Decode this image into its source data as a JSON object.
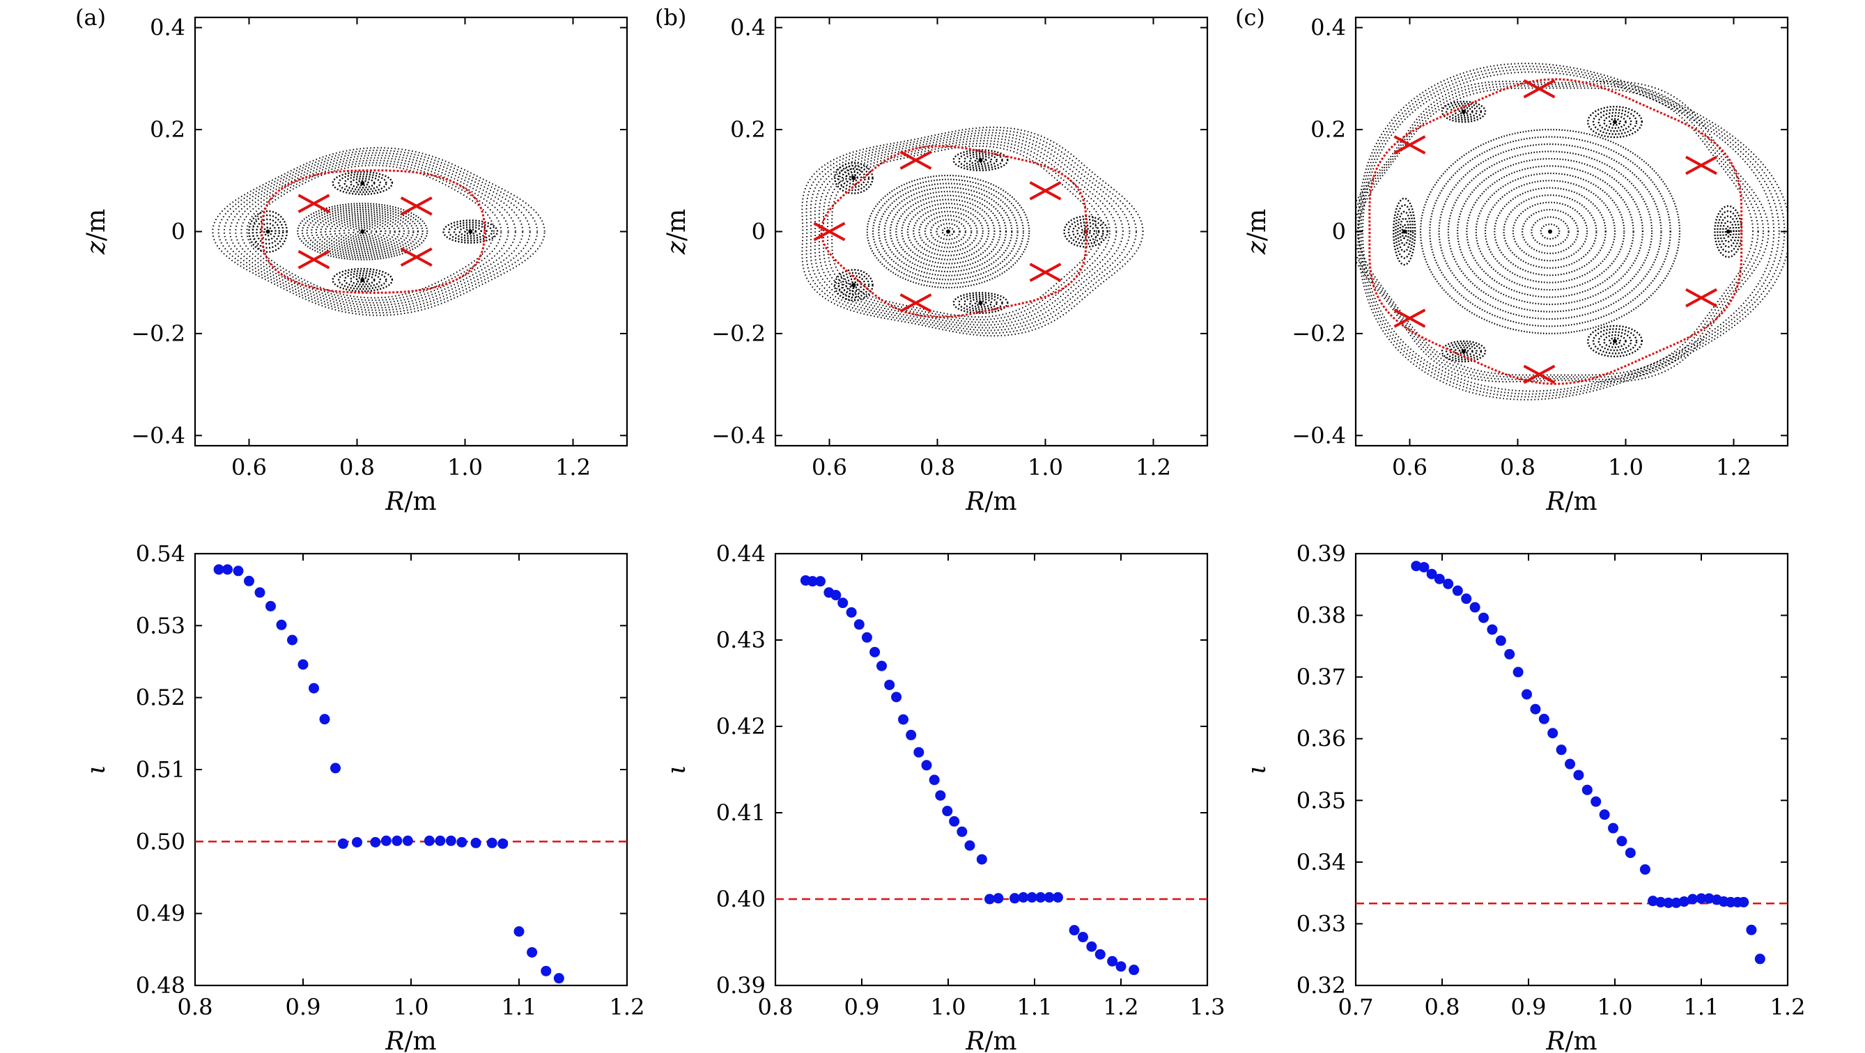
{
  "colors": {
    "poincare": "#000000",
    "separatrix": "#e01010",
    "iota_points": "#0a14e6",
    "resonance_line": "#e01010",
    "frame": "#000000"
  },
  "chart_data": [
    {
      "panel": "(a)",
      "type": "scatter",
      "xlabel_var": "R",
      "xlabel_unit": "/m",
      "ylabel_var": "z",
      "ylabel_unit": "/m",
      "xlim": [
        0.5,
        1.3
      ],
      "ylim": [
        -0.42,
        0.42
      ],
      "xticks": [
        0.6,
        0.8,
        1.0,
        1.2
      ],
      "xtick_labels": [
        "0.6",
        "0.8",
        "1.0",
        "1.2"
      ],
      "yticks": [
        -0.4,
        -0.2,
        0,
        0.2,
        0.4
      ],
      "ytick_labels": [
        "−0.4",
        "−0.2",
        "0",
        "0.2",
        "0.4"
      ],
      "poincare": {
        "axis": [
          0.81,
          0.0
        ],
        "core": {
          "a": 0.12,
          "b": 0.055
        },
        "islands": [
          {
            "center": [
              0.635,
              0.0
            ],
            "a": 0.035,
            "b": 0.04
          },
          {
            "center": [
              0.81,
              0.095
            ],
            "a": 0.055,
            "b": 0.022
          },
          {
            "center": [
              1.01,
              0.0
            ],
            "a": 0.05,
            "b": 0.022
          },
          {
            "center": [
              0.81,
              -0.095
            ],
            "a": 0.055,
            "b": 0.022
          }
        ],
        "x_points": [
          [
            0.72,
            0.055
          ],
          [
            0.91,
            0.05
          ],
          [
            0.72,
            -0.055
          ],
          [
            0.91,
            -0.05
          ]
        ],
        "separatrix": {
          "a": 0.215,
          "b": 0.125,
          "mode": 4,
          "amp": 0.04,
          "cx": 0.83
        },
        "outer": {
          "a": 0.29,
          "b": 0.155,
          "mode": 4,
          "amp": 0.06,
          "cx": 0.84
        }
      }
    },
    {
      "panel": "(b)",
      "type": "scatter",
      "xlabel_var": "R",
      "xlabel_unit": "/m",
      "ylabel_var": "z",
      "ylabel_unit": "/m",
      "xlim": [
        0.5,
        1.3
      ],
      "ylim": [
        -0.42,
        0.42
      ],
      "xticks": [
        0.6,
        0.8,
        1.0,
        1.2
      ],
      "xtick_labels": [
        "0.6",
        "0.8",
        "1.0",
        "1.2"
      ],
      "yticks": [
        -0.4,
        -0.2,
        0,
        0.2,
        0.4
      ],
      "ytick_labels": [
        "−0.4",
        "−0.2",
        "0",
        "0.2",
        "0.4"
      ],
      "poincare": {
        "axis": [
          0.82,
          0.0
        ],
        "core": {
          "a": 0.15,
          "b": 0.11
        },
        "islands": [
          {
            "center": [
              0.645,
              0.105
            ],
            "a": 0.035,
            "b": 0.03
          },
          {
            "center": [
              0.88,
              0.14
            ],
            "a": 0.05,
            "b": 0.02
          },
          {
            "center": [
              1.075,
              0.0
            ],
            "a": 0.04,
            "b": 0.03
          },
          {
            "center": [
              0.88,
              -0.14
            ],
            "a": 0.05,
            "b": 0.02
          },
          {
            "center": [
              0.645,
              -0.105
            ],
            "a": 0.035,
            "b": 0.03
          }
        ],
        "x_points": [
          [
            0.6,
            0.0
          ],
          [
            0.76,
            0.14
          ],
          [
            1.0,
            0.08
          ],
          [
            1.0,
            -0.08
          ],
          [
            0.76,
            -0.14
          ]
        ],
        "separatrix": {
          "a": 0.245,
          "b": 0.165,
          "mode": 5,
          "amp": 0.04,
          "cx": 0.84
        },
        "outer": {
          "a": 0.315,
          "b": 0.2,
          "mode": 5,
          "amp": 0.05,
          "cx": 0.85
        }
      }
    },
    {
      "panel": "(c)",
      "type": "scatter",
      "xlabel_var": "R",
      "xlabel_unit": "/m",
      "ylabel_var": "z",
      "ylabel_unit": "/m",
      "xlim": [
        0.5,
        1.3
      ],
      "ylim": [
        -0.42,
        0.42
      ],
      "xticks": [
        0.6,
        0.8,
        1.0,
        1.2
      ],
      "xtick_labels": [
        "0.6",
        "0.8",
        "1.0",
        "1.2"
      ],
      "yticks": [
        -0.4,
        -0.2,
        0,
        0.2,
        0.4
      ],
      "ytick_labels": [
        "−0.4",
        "−0.2",
        "0",
        "0.2",
        "0.4"
      ],
      "poincare": {
        "axis": [
          0.86,
          0.0
        ],
        "core": {
          "a": 0.24,
          "b": 0.2
        },
        "islands": [
          {
            "center": [
              0.7,
              0.235
            ],
            "a": 0.04,
            "b": 0.02
          },
          {
            "center": [
              0.98,
              0.215
            ],
            "a": 0.05,
            "b": 0.03
          },
          {
            "center": [
              1.19,
              0.0
            ],
            "a": 0.025,
            "b": 0.05
          },
          {
            "center": [
              0.98,
              -0.215
            ],
            "a": 0.05,
            "b": 0.03
          },
          {
            "center": [
              0.7,
              -0.235
            ],
            "a": 0.04,
            "b": 0.02
          },
          {
            "center": [
              0.59,
              0.0
            ],
            "a": 0.02,
            "b": 0.065
          }
        ],
        "x_points": [
          [
            0.84,
            0.28
          ],
          [
            1.14,
            0.13
          ],
          [
            1.14,
            -0.13
          ],
          [
            0.84,
            -0.28
          ],
          [
            0.6,
            -0.17
          ],
          [
            0.6,
            0.17
          ]
        ],
        "separatrix": {
          "a": 0.355,
          "b": 0.29,
          "mode": 6,
          "amp": 0.03,
          "cx": 0.87
        },
        "outer": {
          "a": 0.4,
          "b": 0.325,
          "mode": 3,
          "amp": 0.06,
          "cx": 0.88
        }
      }
    },
    {
      "panel": "(a)",
      "type": "scatter",
      "xlabel_var": "R",
      "xlabel_unit": "/m",
      "ylabel_var": "ι",
      "xlim": [
        0.8,
        1.2
      ],
      "ylim": [
        0.48,
        0.54
      ],
      "xticks": [
        0.8,
        0.9,
        1.0,
        1.1,
        1.2
      ],
      "xtick_labels": [
        "0.8",
        "0.9",
        "1.0",
        "1.1",
        "1.2"
      ],
      "yticks": [
        0.48,
        0.49,
        0.5,
        0.51,
        0.52,
        0.53,
        0.54
      ],
      "ytick_labels": [
        "0.48",
        "0.49",
        "0.50",
        "0.51",
        "0.52",
        "0.53",
        "0.54"
      ],
      "resonance": 0.5,
      "x": [
        0.822,
        0.83,
        0.84,
        0.85,
        0.86,
        0.87,
        0.88,
        0.89,
        0.9,
        0.91,
        0.92,
        0.93,
        0.937,
        0.95,
        0.967,
        0.977,
        0.987,
        0.997,
        1.017,
        1.027,
        1.037,
        1.047,
        1.06,
        1.075,
        1.085,
        1.1,
        1.112,
        1.125,
        1.137
      ],
      "y": [
        0.5378,
        0.5378,
        0.5376,
        0.5362,
        0.5346,
        0.5327,
        0.5301,
        0.528,
        0.5246,
        0.5213,
        0.517,
        0.5102,
        0.4997,
        0.4999,
        0.4999,
        0.5001,
        0.5001,
        0.5001,
        0.5001,
        0.5001,
        0.5001,
        0.4999,
        0.4998,
        0.4998,
        0.4997,
        0.4875,
        0.4846,
        0.482,
        0.481
      ]
    },
    {
      "panel": "(b)",
      "type": "scatter",
      "xlabel_var": "R",
      "xlabel_unit": "/m",
      "ylabel_var": "ι",
      "xlim": [
        0.8,
        1.3
      ],
      "ylim": [
        0.39,
        0.44
      ],
      "xticks": [
        0.8,
        0.9,
        1.0,
        1.1,
        1.2,
        1.3
      ],
      "xtick_labels": [
        "0.8",
        "0.9",
        "1.0",
        "1.1",
        "1.2",
        "1.3"
      ],
      "yticks": [
        0.39,
        0.4,
        0.41,
        0.42,
        0.43,
        0.44
      ],
      "ytick_labels": [
        "0.39",
        "0.40",
        "0.41",
        "0.42",
        "0.43",
        "0.44"
      ],
      "resonance": 0.4,
      "x": [
        0.835,
        0.843,
        0.852,
        0.862,
        0.87,
        0.878,
        0.888,
        0.897,
        0.906,
        0.915,
        0.923,
        0.932,
        0.94,
        0.948,
        0.957,
        0.966,
        0.975,
        0.984,
        0.991,
        0.999,
        1.007,
        1.016,
        1.025,
        1.039,
        1.048,
        1.058,
        1.077,
        1.087,
        1.097,
        1.107,
        1.117,
        1.127,
        1.146,
        1.156,
        1.166,
        1.176,
        1.19,
        1.2,
        1.215
      ],
      "y": [
        0.4369,
        0.4368,
        0.4368,
        0.4355,
        0.4352,
        0.4343,
        0.4332,
        0.4318,
        0.4303,
        0.4286,
        0.427,
        0.4248,
        0.4234,
        0.4208,
        0.419,
        0.417,
        0.4155,
        0.4138,
        0.412,
        0.4102,
        0.409,
        0.4078,
        0.4062,
        0.4046,
        0.4,
        0.4001,
        0.4001,
        0.4002,
        0.4002,
        0.4002,
        0.4002,
        0.4002,
        0.3964,
        0.3956,
        0.3945,
        0.3936,
        0.3928,
        0.3922,
        0.3918
      ]
    },
    {
      "panel": "(c)",
      "type": "scatter",
      "xlabel_var": "R",
      "xlabel_unit": "/m",
      "ylabel_var": "ι",
      "xlim": [
        0.7,
        1.2
      ],
      "ylim": [
        0.32,
        0.39
      ],
      "xticks": [
        0.7,
        0.8,
        0.9,
        1.0,
        1.1,
        1.2
      ],
      "xtick_labels": [
        "0.7",
        "0.8",
        "0.9",
        "1.0",
        "1.1",
        "1.2"
      ],
      "yticks": [
        0.32,
        0.33,
        0.34,
        0.35,
        0.36,
        0.37,
        0.38,
        0.39
      ],
      "ytick_labels": [
        "0.32",
        "0.33",
        "0.34",
        "0.35",
        "0.36",
        "0.37",
        "0.38",
        "0.39"
      ],
      "resonance": 0.3333,
      "x": [
        0.77,
        0.779,
        0.788,
        0.797,
        0.807,
        0.818,
        0.828,
        0.838,
        0.848,
        0.858,
        0.868,
        0.878,
        0.888,
        0.898,
        0.908,
        0.918,
        0.928,
        0.938,
        0.948,
        0.958,
        0.968,
        0.978,
        0.988,
        0.998,
        1.008,
        1.018,
        1.035,
        1.044,
        1.053,
        1.062,
        1.071,
        1.08,
        1.09,
        1.1,
        1.109,
        1.118,
        1.126,
        1.134,
        1.142,
        1.149,
        1.158,
        1.168
      ],
      "y": [
        0.388,
        0.3878,
        0.3867,
        0.3859,
        0.3851,
        0.384,
        0.3827,
        0.3813,
        0.3796,
        0.3777,
        0.3759,
        0.3737,
        0.3708,
        0.3672,
        0.3648,
        0.3632,
        0.3609,
        0.3582,
        0.3559,
        0.3541,
        0.3517,
        0.3498,
        0.3477,
        0.3455,
        0.3434,
        0.3415,
        0.3388,
        0.3337,
        0.3335,
        0.3334,
        0.3334,
        0.3336,
        0.334,
        0.3341,
        0.3341,
        0.3339,
        0.3336,
        0.3335,
        0.3335,
        0.3335,
        0.329,
        0.3243
      ]
    }
  ]
}
